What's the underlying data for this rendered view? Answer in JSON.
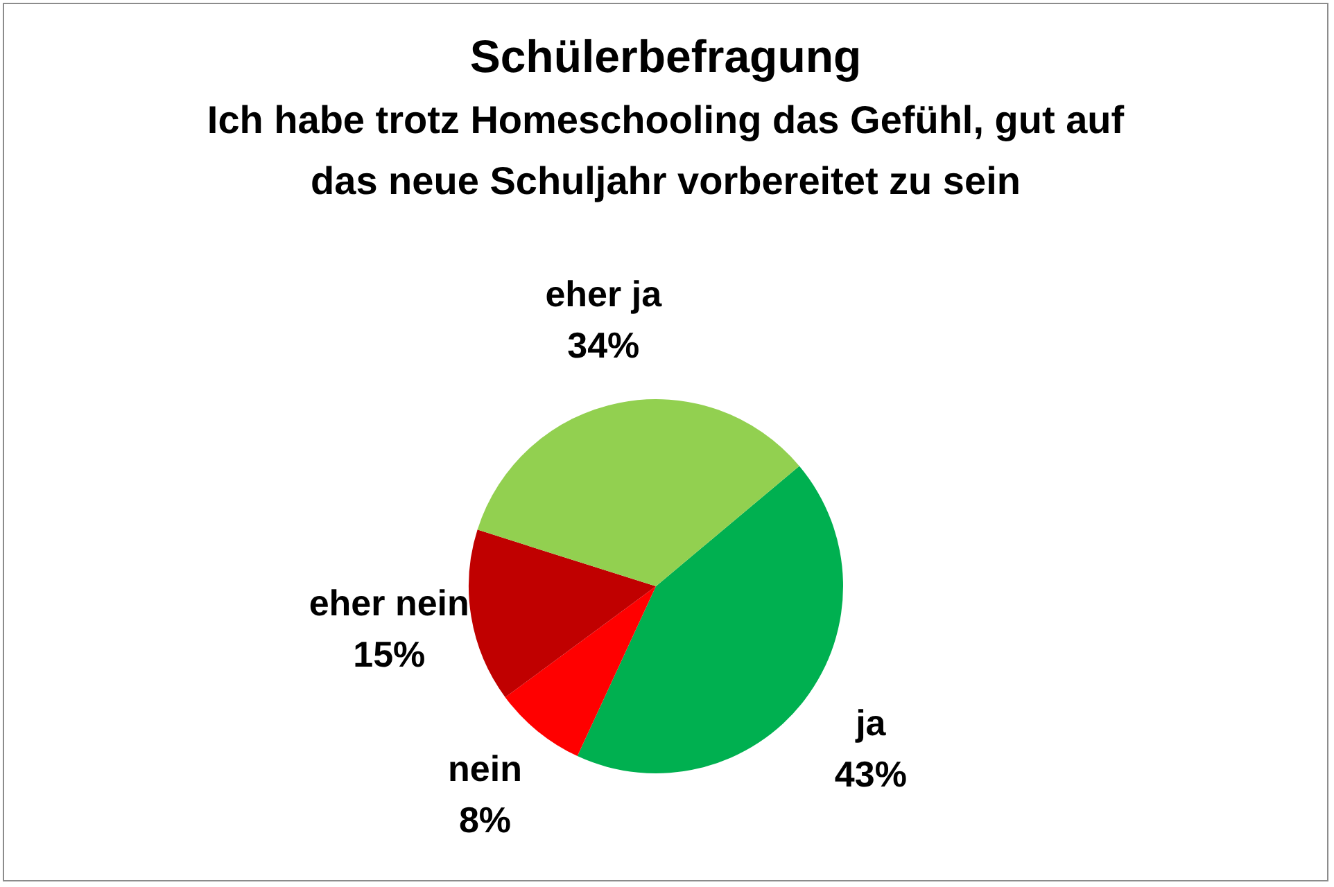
{
  "chart_data": {
    "type": "pie",
    "title": "Schülerbefragung",
    "subtitle": "Ich habe trotz Homeschooling das Gefühl, gut auf das neue Schuljahr vorbereitet zu sein",
    "categories": [
      "ja",
      "nein",
      "eher nein",
      "eher ja"
    ],
    "values": [
      43,
      8,
      15,
      34
    ],
    "value_labels": [
      "43%",
      "8%",
      "15%",
      "34%"
    ],
    "colors": [
      "#00b050",
      "#ff0000",
      "#c00000",
      "#92d050"
    ],
    "legend": false
  }
}
